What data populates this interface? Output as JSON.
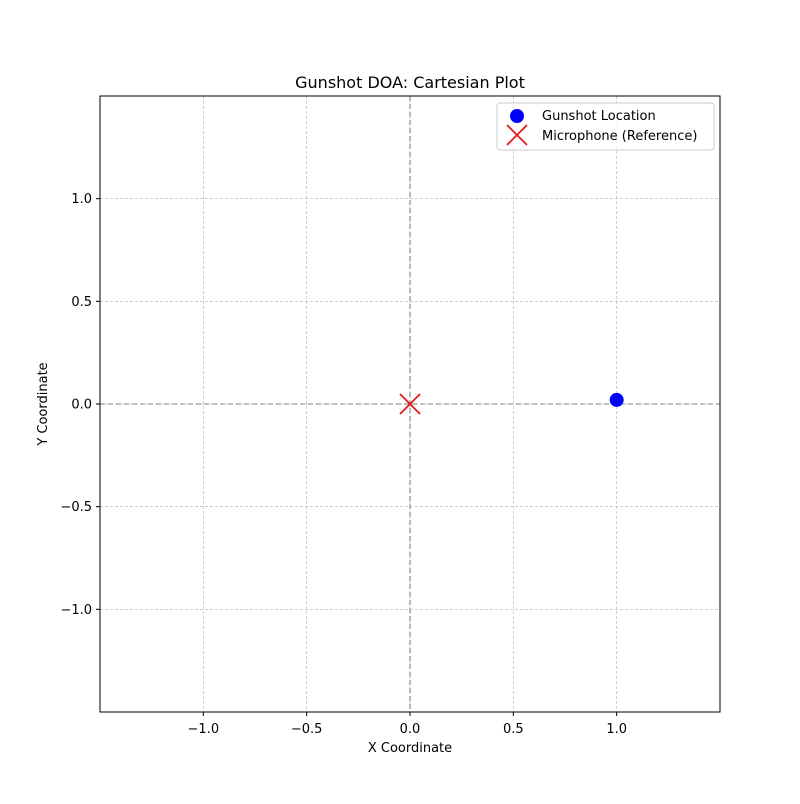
{
  "chart_data": {
    "type": "scatter",
    "title": "Gunshot DOA: Cartesian Plot",
    "xlabel": "X Coordinate",
    "ylabel": "Y Coordinate",
    "xlim": [
      -1.5,
      1.5
    ],
    "ylim": [
      -1.5,
      1.5
    ],
    "xticks": [
      -1.0,
      -0.5,
      0.0,
      0.5,
      1.0
    ],
    "yticks": [
      -1.0,
      -0.5,
      0.0,
      0.5,
      1.0
    ],
    "xtick_labels": [
      "−1.0",
      "−0.5",
      "0.0",
      "0.5",
      "1.0"
    ],
    "ytick_labels": [
      "−1.0",
      "−0.5",
      "0.0",
      "0.5",
      "1.0"
    ],
    "grid": true,
    "reference_lines": [
      {
        "orientation": "horizontal",
        "value": 0.0,
        "style": "dashed",
        "color": "#808080"
      },
      {
        "orientation": "vertical",
        "value": 0.0,
        "style": "dashed",
        "color": "#808080"
      }
    ],
    "legend_position": "top-right",
    "series": [
      {
        "name": "Gunshot Location",
        "marker": "circle",
        "color": "#0000ff",
        "points": [
          {
            "x": 1.0,
            "y": 0.02
          }
        ]
      },
      {
        "name": "Microphone (Reference)",
        "marker": "x",
        "color": "#e31a1c",
        "points": [
          {
            "x": 0.0,
            "y": 0.0
          }
        ]
      }
    ]
  }
}
